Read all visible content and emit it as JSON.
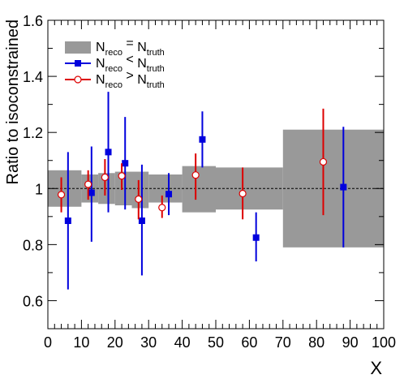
{
  "chart_data": {
    "type": "scatter",
    "xlabel": "X",
    "ylabel": "Ratio to isoconstrained",
    "xlim": [
      0,
      100
    ],
    "ylim": [
      0.5,
      1.6
    ],
    "x_ticks": [
      "0",
      "10",
      "20",
      "30",
      "40",
      "50",
      "60",
      "70",
      "80",
      "90",
      "100"
    ],
    "y_ticks": [
      "0.6",
      "0.8",
      "1",
      "1.2",
      "1.4",
      "1.6"
    ],
    "reference_line": 1.0,
    "grid": false,
    "legend_position": "top-left",
    "legend": [
      {
        "main": "N",
        "sub": "reco",
        "op": " = ",
        "main2": "N",
        "sub2": "truth",
        "style": "band"
      },
      {
        "main": "N",
        "sub": "reco",
        "op": " < ",
        "main2": "N",
        "sub2": "truth",
        "style": "blue-square"
      },
      {
        "main": "N",
        "sub": "reco",
        "op": " > ",
        "main2": "N",
        "sub2": "truth",
        "style": "red-circle"
      }
    ],
    "band": {
      "color": "#999999",
      "bins": [
        {
          "x0": 0,
          "x1": 10,
          "lo": 0.935,
          "hi": 1.065
        },
        {
          "x0": 10,
          "x1": 15,
          "lo": 0.95,
          "hi": 1.05
        },
        {
          "x0": 15,
          "x1": 20,
          "lo": 0.945,
          "hi": 1.055
        },
        {
          "x0": 20,
          "x1": 25,
          "lo": 0.94,
          "hi": 1.06
        },
        {
          "x0": 25,
          "x1": 30,
          "lo": 0.93,
          "hi": 1.06
        },
        {
          "x0": 30,
          "x1": 40,
          "lo": 0.95,
          "hi": 1.05
        },
        {
          "x0": 40,
          "x1": 50,
          "lo": 0.915,
          "hi": 1.08
        },
        {
          "x0": 50,
          "x1": 70,
          "lo": 0.925,
          "hi": 1.075
        },
        {
          "x0": 70,
          "x1": 100,
          "lo": 0.79,
          "hi": 1.21
        }
      ]
    },
    "series": [
      {
        "color": "#0000dd",
        "marker": "square",
        "points": [
          {
            "x": 6,
            "y": 0.885,
            "lo": 0.64,
            "hi": 1.13
          },
          {
            "x": 13,
            "y": 0.985,
            "lo": 0.81,
            "hi": 1.15
          },
          {
            "x": 18,
            "y": 1.13,
            "lo": 0.915,
            "hi": 1.345
          },
          {
            "x": 23,
            "y": 1.09,
            "lo": 0.925,
            "hi": 1.255
          },
          {
            "x": 28,
            "y": 0.885,
            "lo": 0.69,
            "hi": 1.085
          },
          {
            "x": 36,
            "y": 0.98,
            "lo": 0.905,
            "hi": 1.055
          },
          {
            "x": 46,
            "y": 1.175,
            "lo": 1.075,
            "hi": 1.275
          },
          {
            "x": 62,
            "y": 0.825,
            "lo": 0.74,
            "hi": 0.915
          },
          {
            "x": 88,
            "y": 1.005,
            "lo": 0.79,
            "hi": 1.22
          }
        ]
      },
      {
        "color": "#dd0000",
        "marker": "open-circle",
        "points": [
          {
            "x": 4,
            "y": 0.978,
            "lo": 0.915,
            "hi": 1.04
          },
          {
            "x": 12,
            "y": 1.015,
            "lo": 0.96,
            "hi": 1.065
          },
          {
            "x": 17,
            "y": 1.04,
            "lo": 0.975,
            "hi": 1.105
          },
          {
            "x": 22,
            "y": 1.045,
            "lo": 0.995,
            "hi": 1.09
          },
          {
            "x": 27,
            "y": 0.962,
            "lo": 0.89,
            "hi": 1.03
          },
          {
            "x": 34,
            "y": 0.932,
            "lo": 0.895,
            "hi": 0.975
          },
          {
            "x": 44,
            "y": 1.048,
            "lo": 0.96,
            "hi": 1.125
          },
          {
            "x": 58,
            "y": 0.982,
            "lo": 0.89,
            "hi": 1.075
          },
          {
            "x": 82,
            "y": 1.095,
            "lo": 0.905,
            "hi": 1.285
          }
        ]
      }
    ]
  }
}
